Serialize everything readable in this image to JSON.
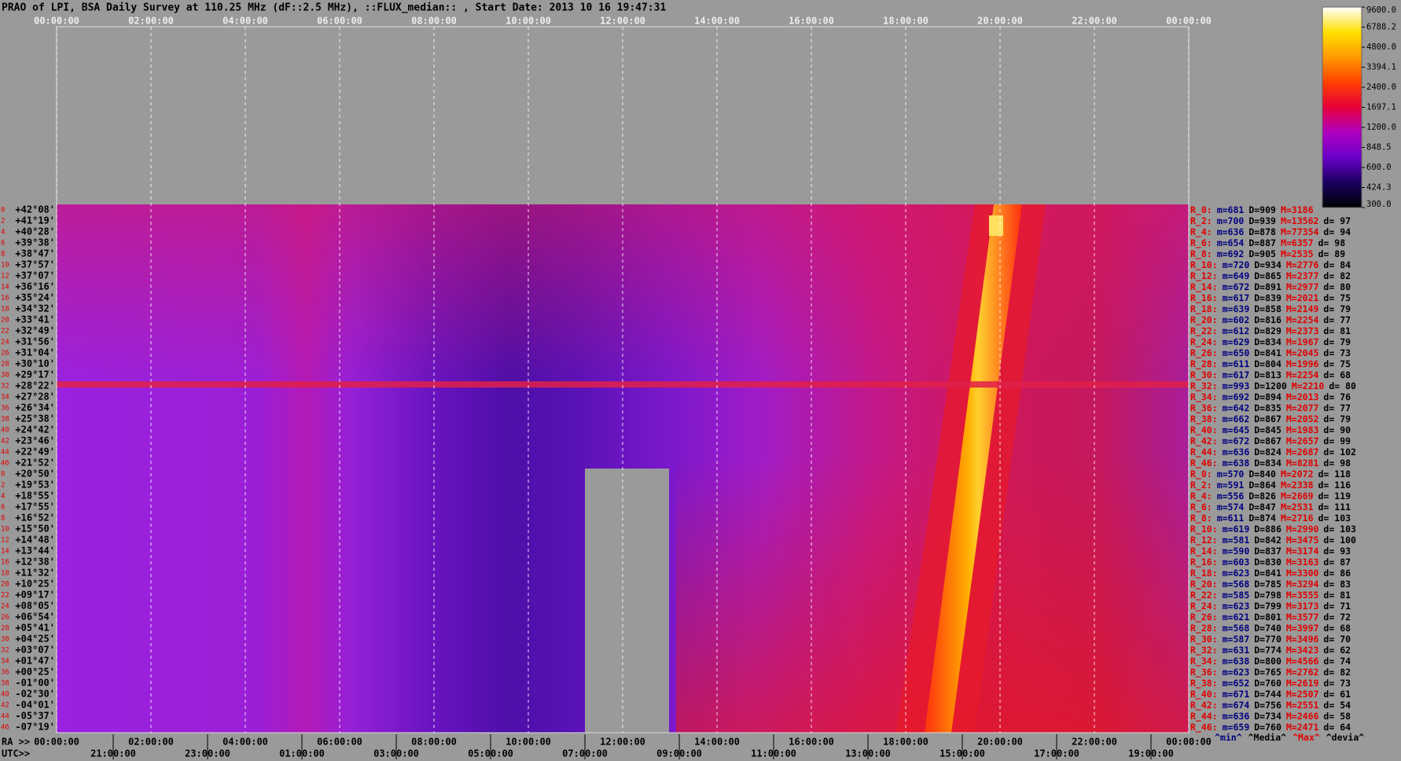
{
  "chart_data": {
    "type": "heatmap",
    "title": "PRAO of LPI, BSA Daily Survey at 110.25 MHz (dF::2.5 MHz), ::FLUX_median:: , Start Date: 2013 10 16 19:47:31",
    "categories": [
      "00:00:00",
      "02:00:00",
      "04:00:00",
      "06:00:00",
      "08:00:00",
      "10:00:00",
      "12:00:00",
      "14:00:00",
      "16:00:00",
      "18:00:00",
      "20:00:00",
      "22:00:00",
      "00:00:00"
    ],
    "ra_label": "RA >>",
    "ra_categories": [
      "00:00:00",
      "02:00:00",
      "04:00:00",
      "06:00:00",
      "08:00:00",
      "10:00:00",
      "12:00:00",
      "14:00:00",
      "16:00:00",
      "18:00:00",
      "20:00:00",
      "22:00:00",
      "00:00:00"
    ],
    "utc_label": "UTC>>",
    "utc_categories": [
      "21:00:00",
      "23:00:00",
      "01:00:00",
      "03:00:00",
      "05:00:00",
      "07:00:00",
      "09:00:00",
      "11:00:00",
      "13:00:00",
      "15:00:00",
      "17:00:00",
      "19:00:00"
    ],
    "grid": true,
    "colorbar": {
      "log": true,
      "lim": [
        300,
        9600
      ],
      "colormap": [
        "#000000",
        "#1a0060",
        "#6a00c8",
        "#b000c0",
        "#e8003a",
        "#ff4000",
        "#ff9a00",
        "#ffe000",
        "#ffffff"
      ],
      "ticks": [
        {
          "value": 9600,
          "label": "9600.0"
        },
        {
          "value": 6788.2,
          "label": "6788.2"
        },
        {
          "value": 4800,
          "label": "4800.0"
        },
        {
          "value": 3394.1,
          "label": "3394.1"
        },
        {
          "value": 2400,
          "label": "2400.0"
        },
        {
          "value": 1697.1,
          "label": "1697.1"
        },
        {
          "value": 1200,
          "label": "1200.0"
        },
        {
          "value": 848.5,
          "label": "848.5"
        },
        {
          "value": 600,
          "label": "600.0"
        },
        {
          "value": 424.3,
          "label": "424.3"
        },
        {
          "value": 300,
          "label": "300.0"
        }
      ]
    },
    "stats_colors": [
      "#e00000",
      "#000080",
      "#000000",
      "#e00000",
      "#000000"
    ],
    "rows": [
      {
        "beam": 0,
        "dec": "+42°08'",
        "stats": [
          "R_0:",
          "m=681",
          "D=909",
          "M=3186"
        ]
      },
      {
        "beam": 2,
        "dec": "+41°19'",
        "stats": [
          "R_2:",
          "m=700",
          "D=939",
          "M=13562",
          "d= 97"
        ]
      },
      {
        "beam": 4,
        "dec": "+40°28'",
        "stats": [
          "R_4:",
          "m=636",
          "D=878",
          "M=77354",
          "d= 94"
        ]
      },
      {
        "beam": 6,
        "dec": "+39°38'",
        "stats": [
          "R_6:",
          "m=654",
          "D=887",
          "M=6357",
          "d= 98"
        ]
      },
      {
        "beam": 8,
        "dec": "+38°47'",
        "stats": [
          "R_8:",
          "m=692",
          "D=905",
          "M=2535",
          "d= 89"
        ]
      },
      {
        "beam": 10,
        "dec": "+37°57'",
        "stats": [
          "R_10:",
          "m=720",
          "D=934",
          "M=2776",
          "d= 84"
        ]
      },
      {
        "beam": 12,
        "dec": "+37°07'",
        "stats": [
          "R_12:",
          "m=649",
          "D=865",
          "M=2377",
          "d= 82"
        ]
      },
      {
        "beam": 14,
        "dec": "+36°16'",
        "stats": [
          "R_14:",
          "m=672",
          "D=891",
          "M=2977",
          "d= 80"
        ]
      },
      {
        "beam": 16,
        "dec": "+35°24'",
        "stats": [
          "R_16:",
          "m=617",
          "D=839",
          "M=2021",
          "d= 75"
        ]
      },
      {
        "beam": 18,
        "dec": "+34°32'",
        "stats": [
          "R_18:",
          "m=639",
          "D=858",
          "M=2149",
          "d= 79"
        ]
      },
      {
        "beam": 20,
        "dec": "+33°41'",
        "stats": [
          "R_20:",
          "m=602",
          "D=816",
          "M=2254",
          "d= 77"
        ]
      },
      {
        "beam": 22,
        "dec": "+32°49'",
        "stats": [
          "R_22:",
          "m=612",
          "D=829",
          "M=2373",
          "d= 81"
        ]
      },
      {
        "beam": 24,
        "dec": "+31°56'",
        "stats": [
          "R_24:",
          "m=629",
          "D=834",
          "M=1967",
          "d= 79"
        ]
      },
      {
        "beam": 26,
        "dec": "+31°04'",
        "stats": [
          "R_26:",
          "m=650",
          "D=841",
          "M=2045",
          "d= 73"
        ]
      },
      {
        "beam": 28,
        "dec": "+30°10'",
        "stats": [
          "R_28:",
          "m=611",
          "D=804",
          "M=1996",
          "d= 75"
        ]
      },
      {
        "beam": 30,
        "dec": "+29°17'",
        "stats": [
          "R_30:",
          "m=617",
          "D=813",
          "M=2254",
          "d= 68"
        ]
      },
      {
        "beam": 32,
        "dec": "+28°22'",
        "stats": [
          "R_32:",
          "m=993",
          "D=1200",
          "M=2210",
          "d= 80"
        ]
      },
      {
        "beam": 34,
        "dec": "+27°28'",
        "stats": [
          "R_34:",
          "m=692",
          "D=894",
          "M=2013",
          "d= 76"
        ]
      },
      {
        "beam": 36,
        "dec": "+26°34'",
        "stats": [
          "R_36:",
          "m=642",
          "D=835",
          "M=2077",
          "d= 77"
        ]
      },
      {
        "beam": 38,
        "dec": "+25°38'",
        "stats": [
          "R_38:",
          "m=662",
          "D=867",
          "M=2052",
          "d= 79"
        ]
      },
      {
        "beam": 40,
        "dec": "+24°42'",
        "stats": [
          "R_40:",
          "m=645",
          "D=845",
          "M=1983",
          "d= 90"
        ]
      },
      {
        "beam": 42,
        "dec": "+23°46'",
        "stats": [
          "R_42:",
          "m=672",
          "D=867",
          "M=2657",
          "d= 99"
        ]
      },
      {
        "beam": 44,
        "dec": "+22°49'",
        "stats": [
          "R_44:",
          "m=636",
          "D=824",
          "M=2687",
          "d= 102"
        ]
      },
      {
        "beam": 46,
        "dec": "+21°52'",
        "stats": [
          "R_46:",
          "m=638",
          "D=834",
          "M=8281",
          "d= 98"
        ]
      },
      {
        "beam": 0,
        "dec": "+20°50'",
        "stats": [
          "R_0:",
          "m=570",
          "D=840",
          "M=2072",
          "d= 118"
        ]
      },
      {
        "beam": 2,
        "dec": "+19°53'",
        "stats": [
          "R_2:",
          "m=591",
          "D=864",
          "M=2338",
          "d= 116"
        ]
      },
      {
        "beam": 4,
        "dec": "+18°55'",
        "stats": [
          "R_4:",
          "m=556",
          "D=826",
          "M=2669",
          "d= 119"
        ]
      },
      {
        "beam": 6,
        "dec": "+17°55'",
        "stats": [
          "R_6:",
          "m=574",
          "D=847",
          "M=2531",
          "d= 111"
        ]
      },
      {
        "beam": 8,
        "dec": "+16°52'",
        "stats": [
          "R_8:",
          "m=611",
          "D=874",
          "M=2716",
          "d= 103"
        ]
      },
      {
        "beam": 10,
        "dec": "+15°50'",
        "stats": [
          "R_10:",
          "m=619",
          "D=886",
          "M=2990",
          "d= 103"
        ]
      },
      {
        "beam": 12,
        "dec": "+14°48'",
        "stats": [
          "R_12:",
          "m=581",
          "D=842",
          "M=3475",
          "d= 100"
        ]
      },
      {
        "beam": 14,
        "dec": "+13°44'",
        "stats": [
          "R_14:",
          "m=590",
          "D=837",
          "M=3174",
          "d= 93"
        ]
      },
      {
        "beam": 16,
        "dec": "+12°38'",
        "stats": [
          "R_16:",
          "m=603",
          "D=830",
          "M=3163",
          "d= 87"
        ]
      },
      {
        "beam": 18,
        "dec": "+11°32'",
        "stats": [
          "R_18:",
          "m=623",
          "D=841",
          "M=3300",
          "d= 86"
        ]
      },
      {
        "beam": 20,
        "dec": "+10°25'",
        "stats": [
          "R_20:",
          "m=568",
          "D=785",
          "M=3294",
          "d= 83"
        ]
      },
      {
        "beam": 22,
        "dec": "+09°17'",
        "stats": [
          "R_22:",
          "m=585",
          "D=798",
          "M=3555",
          "d= 81"
        ]
      },
      {
        "beam": 24,
        "dec": "+08°05'",
        "stats": [
          "R_24:",
          "m=623",
          "D=799",
          "M=3173",
          "d= 71"
        ]
      },
      {
        "beam": 26,
        "dec": "+06°54'",
        "stats": [
          "R_26:",
          "m=621",
          "D=801",
          "M=3577",
          "d= 72"
        ]
      },
      {
        "beam": 28,
        "dec": "+05°41'",
        "stats": [
          "R_28:",
          "m=568",
          "D=740",
          "M=3997",
          "d= 68"
        ]
      },
      {
        "beam": 30,
        "dec": "+04°25'",
        "stats": [
          "R_30:",
          "m=587",
          "D=770",
          "M=3496",
          "d= 70"
        ]
      },
      {
        "beam": 32,
        "dec": "+03°07'",
        "stats": [
          "R_32:",
          "m=631",
          "D=774",
          "M=3423",
          "d= 62"
        ]
      },
      {
        "beam": 34,
        "dec": "+01°47'",
        "stats": [
          "R_34:",
          "m=638",
          "D=800",
          "M=4566",
          "d= 74"
        ]
      },
      {
        "beam": 36,
        "dec": "+00°25'",
        "stats": [
          "R_36:",
          "m=623",
          "D=765",
          "M=2762",
          "d= 82"
        ]
      },
      {
        "beam": 38,
        "dec": "-01°00'",
        "stats": [
          "R_38:",
          "m=652",
          "D=760",
          "M=2619",
          "d= 73"
        ]
      },
      {
        "beam": 40,
        "dec": "-02°30'",
        "stats": [
          "R_40:",
          "m=671",
          "D=744",
          "M=2507",
          "d= 61"
        ]
      },
      {
        "beam": 42,
        "dec": "-04°01'",
        "stats": [
          "R_42:",
          "m=674",
          "D=756",
          "M=2551",
          "d= 54"
        ]
      },
      {
        "beam": 44,
        "dec": "-05°37'",
        "stats": [
          "R_44:",
          "m=636",
          "D=734",
          "M=2466",
          "d= 58"
        ]
      },
      {
        "beam": 46,
        "dec": "-07°19'",
        "stats": [
          "R_46:",
          "m=659",
          "D=760",
          "M=2471",
          "d= 64"
        ]
      }
    ],
    "footer": [
      "^min^",
      "^Media^",
      "^Max^",
      "^devia^"
    ],
    "footer_colors": [
      "#000080",
      "#000000",
      "#e00000",
      "#000000"
    ]
  }
}
